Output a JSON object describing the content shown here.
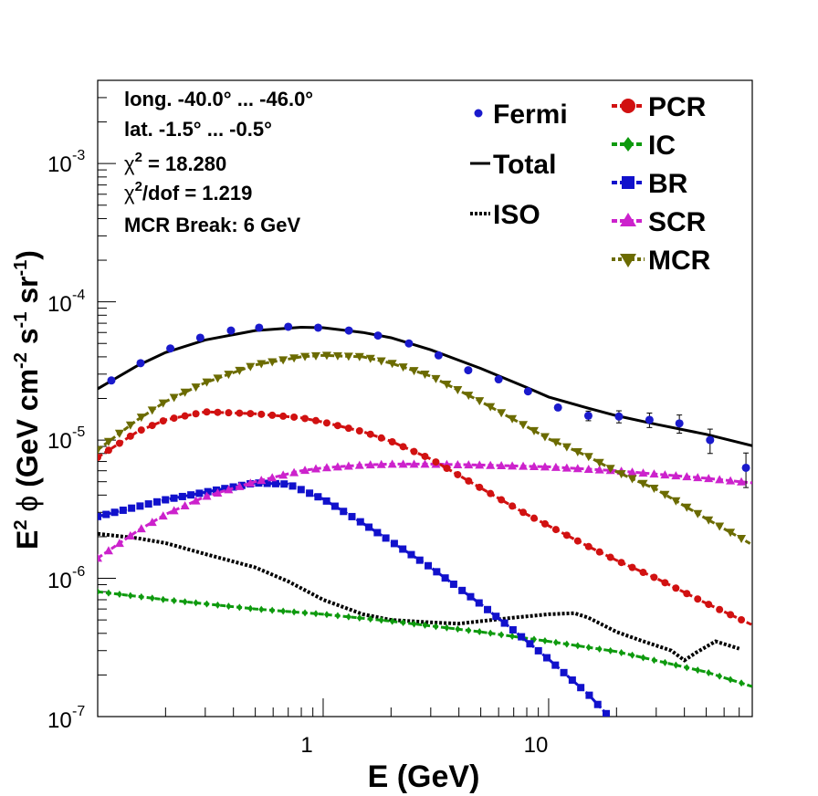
{
  "chart_data": {
    "type": "line",
    "xscale": "log",
    "yscale": "log",
    "xlim": [
      0.1,
      80
    ],
    "ylim": [
      1e-07,
      0.004
    ],
    "xlabel": "E (GeV)",
    "ylabel_main": "E",
    "ylabel_sup": "2",
    "ylabel_phi": "ϕ",
    "ylabel_units": "(GeV cm",
    "ylabel_u1": "-2",
    "ylabel_u2": " s",
    "ylabel_u3": "-1",
    "ylabel_u4": " sr",
    "ylabel_u5": "-1",
    "ylabel_u6": ")",
    "x_tick_labels": [
      {
        "value": 1,
        "label": "1"
      },
      {
        "value": 10,
        "label": "10"
      }
    ],
    "y_tick_labels": [
      {
        "value": 1e-07,
        "base": "10",
        "exp": "-7"
      },
      {
        "value": 1e-06,
        "base": "10",
        "exp": "-6"
      },
      {
        "value": 1e-05,
        "base": "10",
        "exp": "-5"
      },
      {
        "value": 0.0001,
        "base": "10",
        "exp": "-4"
      },
      {
        "value": 0.001,
        "base": "10",
        "exp": "-3"
      }
    ],
    "annotations": {
      "line1": "long. -40.0° ... -46.0°",
      "line2": "lat. -1.5° ... -0.5°",
      "chi_sym": "χ",
      "chi_sup": "2",
      "chi_val": " = 18.280",
      "chidof_sym": "χ",
      "chidof_sup": "2",
      "chidof_val": "/dof = 1.219",
      "line5": "MCR Break:  6 GeV"
    },
    "legend_placement": "top-right",
    "fermi": {
      "name": "Fermi",
      "color": "#1a1acc",
      "x": [
        0.115,
        0.155,
        0.21,
        0.285,
        0.39,
        0.52,
        0.7,
        0.95,
        1.3,
        1.75,
        2.4,
        3.25,
        4.4,
        6.0,
        8.1,
        11.0,
        15.0,
        20.5,
        28.0,
        38.0,
        52.0,
        75.0
      ],
      "y": [
        2.7e-05,
        3.6e-05,
        4.6e-05,
        5.5e-05,
        6.2e-05,
        6.5e-05,
        6.6e-05,
        6.5e-05,
        6.2e-05,
        5.7e-05,
        5e-05,
        4.1e-05,
        3.2e-05,
        2.75e-05,
        2.25e-05,
        1.72e-05,
        1.5e-05,
        1.48e-05,
        1.4e-05,
        1.32e-05,
        1e-05,
        6.3e-06
      ],
      "err": [
        0.03,
        0.03,
        0.03,
        0.03,
        0.03,
        0.03,
        0.03,
        0.03,
        0.03,
        0.03,
        0.03,
        0.03,
        0.04,
        0.04,
        0.05,
        0.06,
        0.08,
        0.1,
        0.12,
        0.15,
        0.2,
        0.28
      ]
    },
    "series": [
      {
        "name": "Total",
        "color": "#000000",
        "style": "solid",
        "marker": "none",
        "x": [
          0.1,
          0.15,
          0.2,
          0.3,
          0.5,
          0.8,
          1.0,
          1.5,
          2.0,
          3.0,
          5.0,
          8.0,
          10.0,
          15.0,
          20.0,
          30.0,
          50.0,
          80.0
        ],
        "y": [
          2.35e-05,
          3.45e-05,
          4.3e-05,
          5.3e-05,
          6.2e-05,
          6.55e-05,
          6.5e-05,
          6e-05,
          5.5e-05,
          4.5e-05,
          3.3e-05,
          2.4e-05,
          2.05e-05,
          1.7e-05,
          1.5e-05,
          1.3e-05,
          1.1e-05,
          9.1e-06
        ]
      },
      {
        "name": "PCR",
        "color": "#d11111",
        "style": "dashed",
        "marker": "circle",
        "x": [
          0.1,
          0.15,
          0.2,
          0.3,
          0.5,
          0.8,
          1.0,
          1.5,
          2.0,
          3.0,
          5.0,
          8.0,
          10.0,
          15.0,
          20.0,
          30.0,
          50.0,
          80.0
        ],
        "y": [
          7.5e-06,
          1.15e-05,
          1.4e-05,
          1.6e-05,
          1.55e-05,
          1.45e-05,
          1.35e-05,
          1.15e-05,
          9.8e-06,
          7.3e-06,
          4.5e-06,
          2.9e-06,
          2.4e-06,
          1.7e-06,
          1.35e-06,
          1e-06,
          6.6e-07,
          4.6e-07
        ]
      },
      {
        "name": "IC",
        "color": "#0e9a0e",
        "style": "dashed",
        "marker": "diamond",
        "x": [
          0.1,
          0.2,
          0.5,
          1.0,
          2.0,
          5.0,
          10.0,
          20.0,
          50.0,
          80.0
        ],
        "y": [
          8e-07,
          7e-07,
          6e-07,
          5.5e-07,
          4.9e-07,
          4.1e-07,
          3.5e-07,
          2.95e-07,
          2.1e-07,
          1.65e-07
        ]
      },
      {
        "name": "BR",
        "color": "#1111cc",
        "style": "dashed",
        "marker": "square",
        "x": [
          0.1,
          0.2,
          0.3,
          0.5,
          0.7,
          1.0,
          1.5,
          2.0,
          3.0,
          5.0,
          7.0,
          10.0,
          15.0,
          18.0
        ],
        "y": [
          2.8e-06,
          3.7e-06,
          4.2e-06,
          4.9e-06,
          4.8e-06,
          3.75e-06,
          2.5e-06,
          1.85e-06,
          1.2e-06,
          6.5e-07,
          4.2e-07,
          2.6e-07,
          1.45e-07,
          1.05e-07
        ]
      },
      {
        "name": "SCR",
        "color": "#cc22cc",
        "style": "dashed",
        "marker": "triangle",
        "x": [
          0.1,
          0.15,
          0.2,
          0.3,
          0.5,
          0.8,
          1.0,
          1.5,
          2.0,
          3.0,
          5.0,
          10.0,
          20.0,
          50.0,
          80.0
        ],
        "y": [
          1.4e-06,
          2.2e-06,
          2.9e-06,
          3.9e-06,
          5e-06,
          6e-06,
          6.3e-06,
          6.6e-06,
          6.7e-06,
          6.7e-06,
          6.6e-06,
          6.4e-06,
          6e-06,
          5.3e-06,
          4.9e-06
        ]
      },
      {
        "name": "MCR",
        "color": "#6b6b00",
        "style": "dashed",
        "marker": "triangle-down",
        "x": [
          0.1,
          0.15,
          0.2,
          0.3,
          0.5,
          0.8,
          1.0,
          1.5,
          2.0,
          3.0,
          5.0,
          8.0,
          10.0,
          15.0,
          20.0,
          30.0,
          50.0,
          80.0
        ],
        "y": [
          8.5e-06,
          1.4e-05,
          1.9e-05,
          2.6e-05,
          3.5e-05,
          4e-05,
          4.1e-05,
          4e-05,
          3.6e-05,
          2.9e-05,
          1.9e-05,
          1.25e-05,
          1.02e-05,
          7.6e-06,
          5.9e-06,
          4.4e-06,
          2.7e-06,
          1.75e-06
        ]
      },
      {
        "name": "ISO",
        "color": "#000000",
        "style": "dotted",
        "marker": "none",
        "x": [
          0.1,
          0.15,
          0.2,
          0.3,
          0.5,
          0.7,
          1.0,
          1.5,
          2.0,
          3.0,
          4.0,
          5.0,
          7.0,
          10.0,
          13.0,
          15.0,
          20.0,
          25.0,
          35.0,
          40.0,
          45.0,
          55.0,
          70.0
        ],
        "y": [
          2.1e-06,
          1.95e-06,
          1.8e-06,
          1.5e-06,
          1.2e-06,
          9.5e-07,
          7e-07,
          5.5e-07,
          5e-07,
          4.8e-07,
          4.7e-07,
          4.9e-07,
          5.2e-07,
          5.5e-07,
          5.6e-07,
          5.2e-07,
          4.1e-07,
          3.6e-07,
          3e-07,
          2.55e-07,
          2.9e-07,
          3.5e-07,
          3.1e-07
        ]
      }
    ]
  }
}
